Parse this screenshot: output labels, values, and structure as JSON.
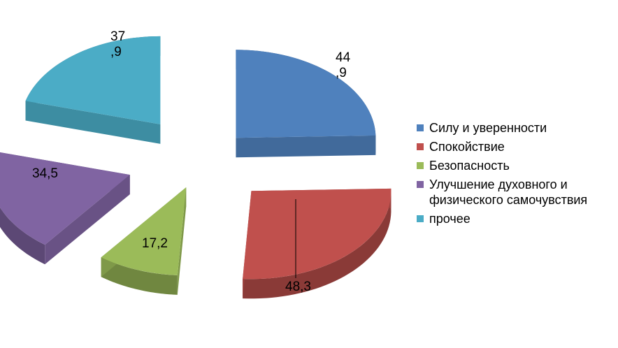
{
  "chart_data": {
    "type": "pie",
    "variant": "3d-exploded",
    "categories": [
      "Силу и уверенности",
      "Спокойствие",
      "Безопасность",
      "Улучшение духовного и физического самочувствия",
      "прочее"
    ],
    "values": [
      44.9,
      48.3,
      17.2,
      34.5,
      37.9
    ],
    "data_labels": [
      [
        "44",
        ",9"
      ],
      [
        "48,3"
      ],
      [
        "17,2"
      ],
      [
        "34,5"
      ],
      [
        "37",
        ",9"
      ]
    ],
    "colors": [
      "#4F81BD",
      "#C0504D",
      "#9BBB59",
      "#8064A2",
      "#4BACC6"
    ],
    "legend_position": "right"
  },
  "legend": {
    "items": [
      {
        "label": "Силу и уверенности",
        "color": "#4F81BD"
      },
      {
        "label": "Спокойствие",
        "color": "#C0504D"
      },
      {
        "label": "Безопасность",
        "color": "#9BBB59"
      },
      {
        "label": " Улучшение духовного и физического самочувствия",
        "color": "#8064A2"
      },
      {
        "label": "прочее",
        "color": "#4BACC6"
      }
    ]
  }
}
